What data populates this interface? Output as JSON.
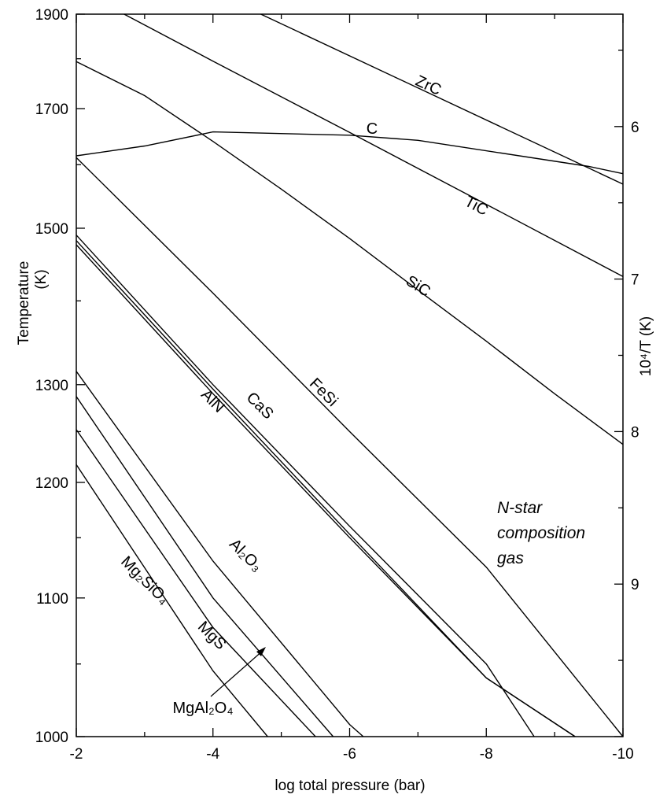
{
  "chart_data": {
    "type": "line",
    "title": "",
    "xlabel": "log total pressure (bar)",
    "ylabel_left": [
      "Temperature",
      "(K)"
    ],
    "ylabel_right": "10⁴/T (K)",
    "xlim": [
      -2,
      -10
    ],
    "ylim": [
      1000,
      1900
    ],
    "y_scale": "reciprocal",
    "x_ticks": [
      -2,
      -4,
      -6,
      -8,
      -10
    ],
    "y_ticks": [
      1000,
      1100,
      1200,
      1300,
      1500,
      1700,
      1900
    ],
    "right_ticks": [
      6,
      7,
      8,
      9
    ],
    "grid": false,
    "legend": "none",
    "series": [
      {
        "name": "ZrC",
        "points": [
          [
            -4.7,
            1900
          ],
          [
            -10,
            1568
          ]
        ]
      },
      {
        "name": "C",
        "points": [
          [
            -2,
            1615
          ],
          [
            -3,
            1632
          ],
          [
            -4,
            1657
          ],
          [
            -6,
            1651
          ],
          [
            -7,
            1642
          ],
          [
            -9.5,
            1597
          ],
          [
            -10,
            1585
          ]
        ]
      },
      {
        "name": "TiC",
        "points": [
          [
            -2.7,
            1900
          ],
          [
            -4,
            1795
          ],
          [
            -6,
            1656
          ],
          [
            -8,
            1536
          ],
          [
            -10,
            1432
          ]
        ]
      },
      {
        "name": "",
        "points": [
          [
            -2,
            1794
          ],
          [
            -3,
            1725
          ],
          [
            -4,
            1640
          ],
          [
            -5,
            1560
          ],
          [
            -6,
            1485
          ],
          [
            -7,
            1414
          ],
          [
            -8,
            1350
          ],
          [
            -9,
            1290
          ],
          [
            -10,
            1237
          ]
        ]
      },
      {
        "name": "SiC",
        "points": [
          [
            -2,
            1612
          ],
          [
            -4,
            1410
          ],
          [
            -6,
            1250
          ],
          [
            -8,
            1125
          ],
          [
            -10,
            1000
          ]
        ]
      },
      {
        "name": "FeSi",
        "points": [
          [
            -2,
            1490
          ],
          [
            -4,
            1300
          ],
          [
            -6,
            1160
          ],
          [
            -8,
            1050
          ],
          [
            -8.7,
            1000
          ]
        ]
      },
      {
        "name": "CaS",
        "points": [
          [
            -2,
            1482
          ],
          [
            -4,
            1295
          ],
          [
            -6,
            1153
          ],
          [
            -8,
            1040
          ],
          [
            -9.3,
            1000
          ]
        ]
      },
      {
        "name": "AlN",
        "points": [
          [
            -2,
            1476
          ],
          [
            -4,
            1290
          ],
          [
            -6,
            1150
          ],
          [
            -8,
            1040
          ],
          [
            -9.3,
            1000
          ]
        ]
      },
      {
        "name": "Al₂O₃",
        "points": [
          [
            -2,
            1315
          ],
          [
            -4,
            1130
          ],
          [
            -6,
            1008
          ],
          [
            -6.2,
            1000
          ]
        ]
      },
      {
        "name": "MgAl₂O₄",
        "points": [
          [
            -2,
            1287
          ],
          [
            -4,
            1100
          ],
          [
            -5.76,
            1000
          ]
        ]
      },
      {
        "name": "MgS",
        "points": [
          [
            -2,
            1252
          ],
          [
            -4,
            1077
          ],
          [
            -5.5,
            1000
          ]
        ]
      },
      {
        "name": "Mg₂SiO₄",
        "points": [
          [
            -2,
            1217
          ],
          [
            -4,
            1045
          ],
          [
            -4.8,
            1000
          ]
        ]
      }
    ],
    "annotation": [
      "N-star",
      "composition",
      "gas"
    ]
  }
}
